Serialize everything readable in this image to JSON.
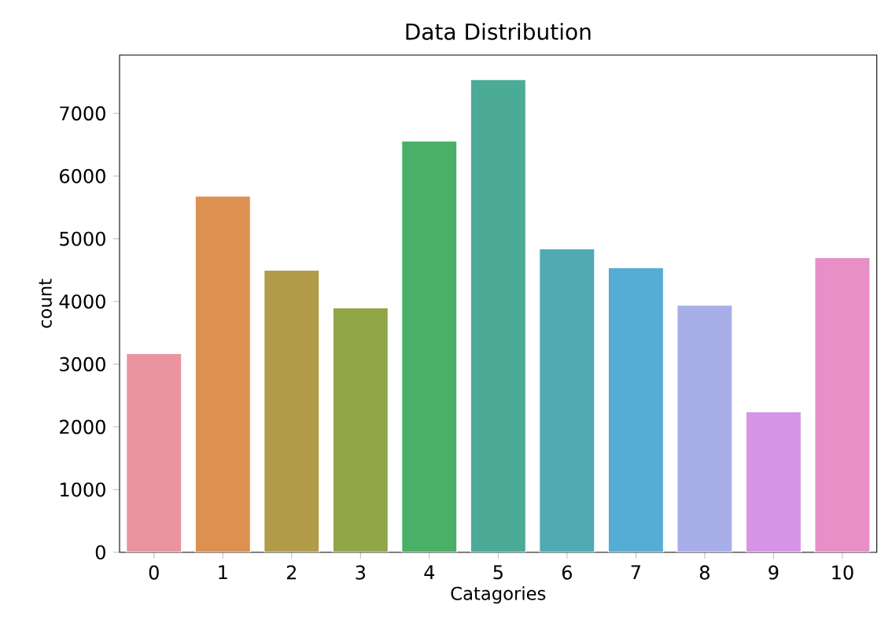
{
  "chart_data": {
    "type": "bar",
    "title": "Data Distribution",
    "xlabel": "Catagories",
    "ylabel": "count",
    "categories": [
      "0",
      "1",
      "2",
      "3",
      "4",
      "5",
      "6",
      "7",
      "8",
      "9",
      "10"
    ],
    "values": [
      3170,
      5680,
      4500,
      3900,
      6560,
      7540,
      4840,
      4540,
      3940,
      2240,
      4700
    ],
    "colors": [
      "#e9949f",
      "#dc9150",
      "#b29c49",
      "#90a647",
      "#4ab068",
      "#4bab97",
      "#4fabb1",
      "#55acd4",
      "#a8aee8",
      "#d794e6",
      "#e88fc8"
    ],
    "ylim": [
      0,
      7930
    ],
    "yticks": [
      0,
      1000,
      2000,
      3000,
      4000,
      5000,
      6000,
      7000
    ],
    "grid": false
  }
}
